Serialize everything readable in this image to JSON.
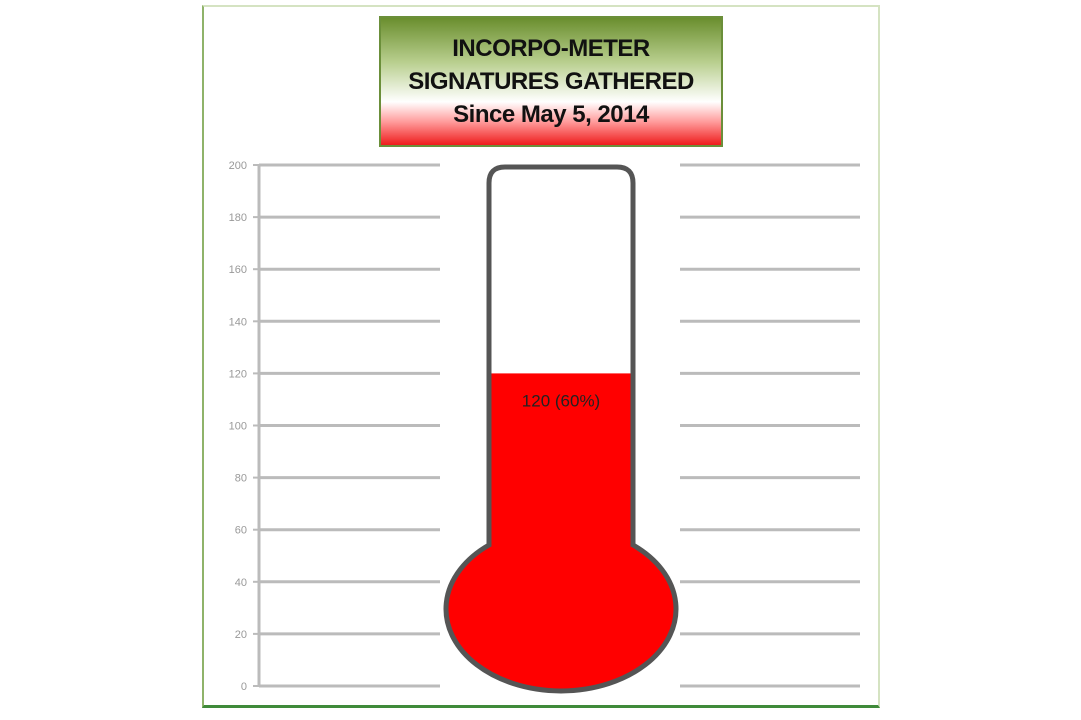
{
  "chart_data": {
    "type": "thermometer",
    "title": [
      "INCORPO-METER",
      "SIGNATURES GATHERED",
      "Since May 5, 2014"
    ],
    "value": 120,
    "goal": 200,
    "data_label": "120 (60%)",
    "ylim": [
      0,
      200
    ],
    "yticks": [
      0,
      20,
      40,
      60,
      80,
      100,
      120,
      140,
      160,
      180,
      200
    ],
    "grid": true,
    "colors": {
      "fill": "#ff0000",
      "outline": "#555555",
      "grid": "#bbbbbb",
      "title_top": "#6a8e2e",
      "title_bottom": "#ee1c1c"
    }
  }
}
